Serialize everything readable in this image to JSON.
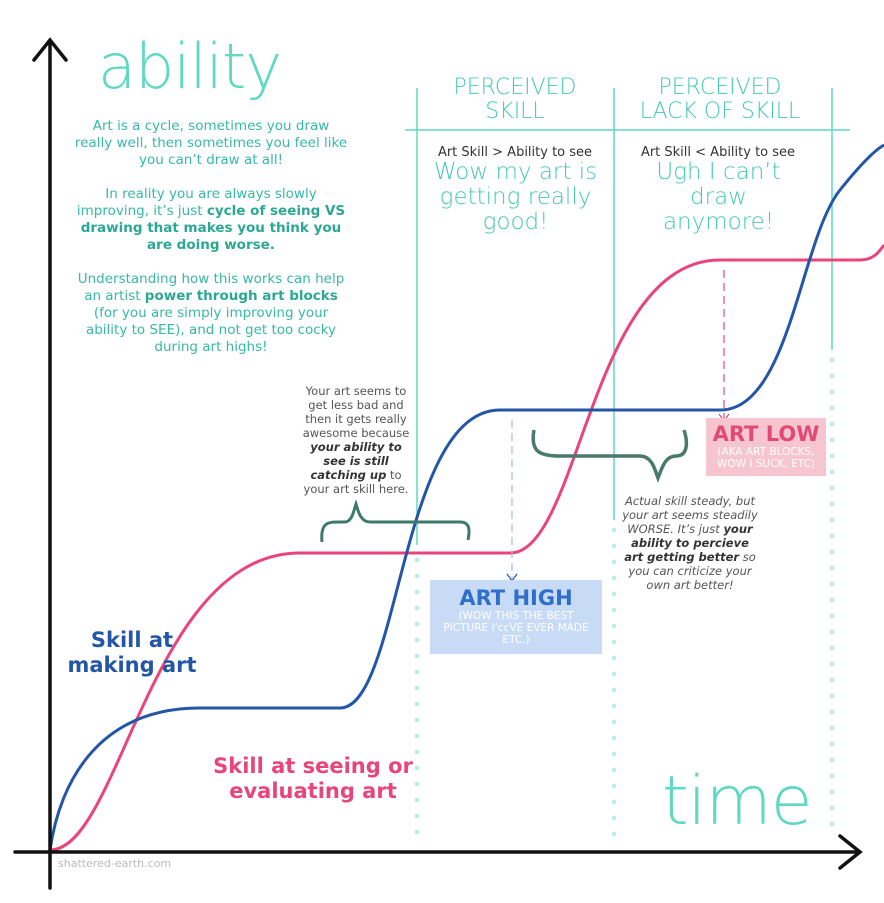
{
  "y_axis_label": "ability",
  "x_axis_label": "time",
  "intro": {
    "paragraphs": [
      [
        "Art is a cycle, sometimes you draw really well, then sometimes you feel like you can’t draw at all!"
      ],
      [
        "In reality you are always slowly improving, it’s just ",
        "cycle of seeing VS drawing that makes you think you are doing worse."
      ],
      [
        "Understanding how this works can help an artist ",
        "power through art blocks",
        " (for you are simply improving your ability to SEE), and not get too cocky during art highs!"
      ]
    ]
  },
  "columns": [
    {
      "heading": "PERCEIVED SKILL",
      "rule": "Art Skill > Ability to see",
      "caption": "Wow my art is getting really good!"
    },
    {
      "heading": "PERCEIVED LACK OF SKILL",
      "rule": "Art Skill < Ability to see",
      "caption": "Ugh I can’t draw anymore!"
    }
  ],
  "notes": {
    "left": [
      "Your art seems to get less bad and then it gets really awesome because ",
      "your ability to see is still catching up",
      " to your art skill here."
    ],
    "right": [
      "Actual skill steady, but your art seems steadily WORSE. It’s just ",
      "your ability to percieve art getting better",
      " so you can criticize your own art better!"
    ]
  },
  "art_high": {
    "title": "ART HIGH",
    "subtitle": "(WOW THIS THE BEST PICTURE I’ccVE EVER MADE ETC.)"
  },
  "art_low": {
    "title": "ART LOW",
    "subtitle": "(AKA ART BLOCKS, WOW I SUCK, ETC)"
  },
  "legend": {
    "making": "Skill at making art",
    "seeing": "Skill at seeing or evaluating art"
  },
  "watermark": "shattered-earth.com"
}
